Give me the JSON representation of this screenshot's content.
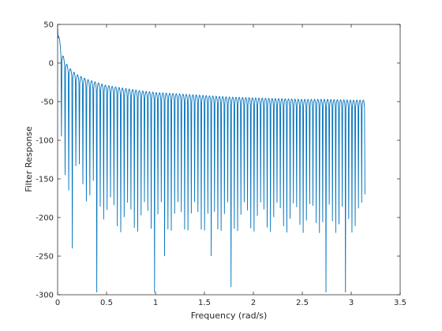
{
  "chart_data": {
    "type": "line",
    "title": "",
    "xlabel": "Frequency (rad/s)",
    "ylabel": "Filter Response",
    "xlim": [
      0,
      3.5
    ],
    "ylim": [
      -300,
      50
    ],
    "xticks": [
      0,
      0.5,
      1,
      1.5,
      2,
      2.5,
      3,
      3.5
    ],
    "xtick_labels": [
      "0",
      "0.5",
      "1",
      "1.5",
      "2",
      "2.5",
      "3",
      "3.5"
    ],
    "yticks": [
      -300,
      -250,
      -200,
      -150,
      -100,
      -50,
      0,
      50
    ],
    "ytick_labels": [
      "-300",
      "-250",
      "-200",
      "-150",
      "-100",
      "-50",
      "0",
      "50"
    ],
    "grid": false,
    "box": true,
    "line_color": "#0072bd",
    "series": [
      {
        "x": [
          0,
          0.005,
          0.02,
          0.04,
          0.06,
          0.08,
          0.1,
          0.15,
          0.2,
          0.3,
          0.4,
          0.5,
          0.6,
          0.8,
          1.0,
          1.25,
          1.5,
          1.75,
          2.0,
          2.25,
          2.5,
          2.75,
          3.0,
          3.14
        ],
        "peak_envelope": [
          45,
          42,
          30,
          14,
          8,
          2,
          -3,
          -10,
          -15,
          -21,
          -25,
          -29,
          -31,
          -35,
          -38,
          -40,
          -42,
          -44,
          -45,
          -46,
          -47,
          -47,
          -48,
          -48
        ],
        "num_lobes": 92,
        "nulls": [
          {
            "x": 0.02,
            "y": -135
          },
          {
            "x": 0.04,
            "y": -95
          },
          {
            "x": 0.07,
            "y": -145
          },
          {
            "x": 0.11,
            "y": -165
          },
          {
            "x": 0.145,
            "y": -240
          },
          {
            "x": 0.2,
            "y": -295
          },
          {
            "x": 0.28,
            "y": -265
          },
          {
            "x": 0.39,
            "y": -297
          },
          {
            "x": 0.49,
            "y": -255
          },
          {
            "x": 0.59,
            "y": -297
          },
          {
            "x": 0.59,
            "y": -220
          },
          {
            "x": 0.7,
            "y": -255
          },
          {
            "x": 0.9,
            "y": -250
          },
          {
            "x": 0.99,
            "y": -297
          },
          {
            "x": 1.09,
            "y": -250
          },
          {
            "x": 1.18,
            "y": -297
          },
          {
            "x": 1.38,
            "y": -297
          },
          {
            "x": 1.57,
            "y": -250
          },
          {
            "x": 1.77,
            "y": -290
          },
          {
            "x": 1.96,
            "y": -297
          },
          {
            "x": 2.16,
            "y": -290
          },
          {
            "x": 2.36,
            "y": -297
          },
          {
            "x": 2.75,
            "y": -297
          },
          {
            "x": 2.95,
            "y": -297
          },
          {
            "x": 3.14,
            "y": -170
          }
        ]
      }
    ]
  }
}
